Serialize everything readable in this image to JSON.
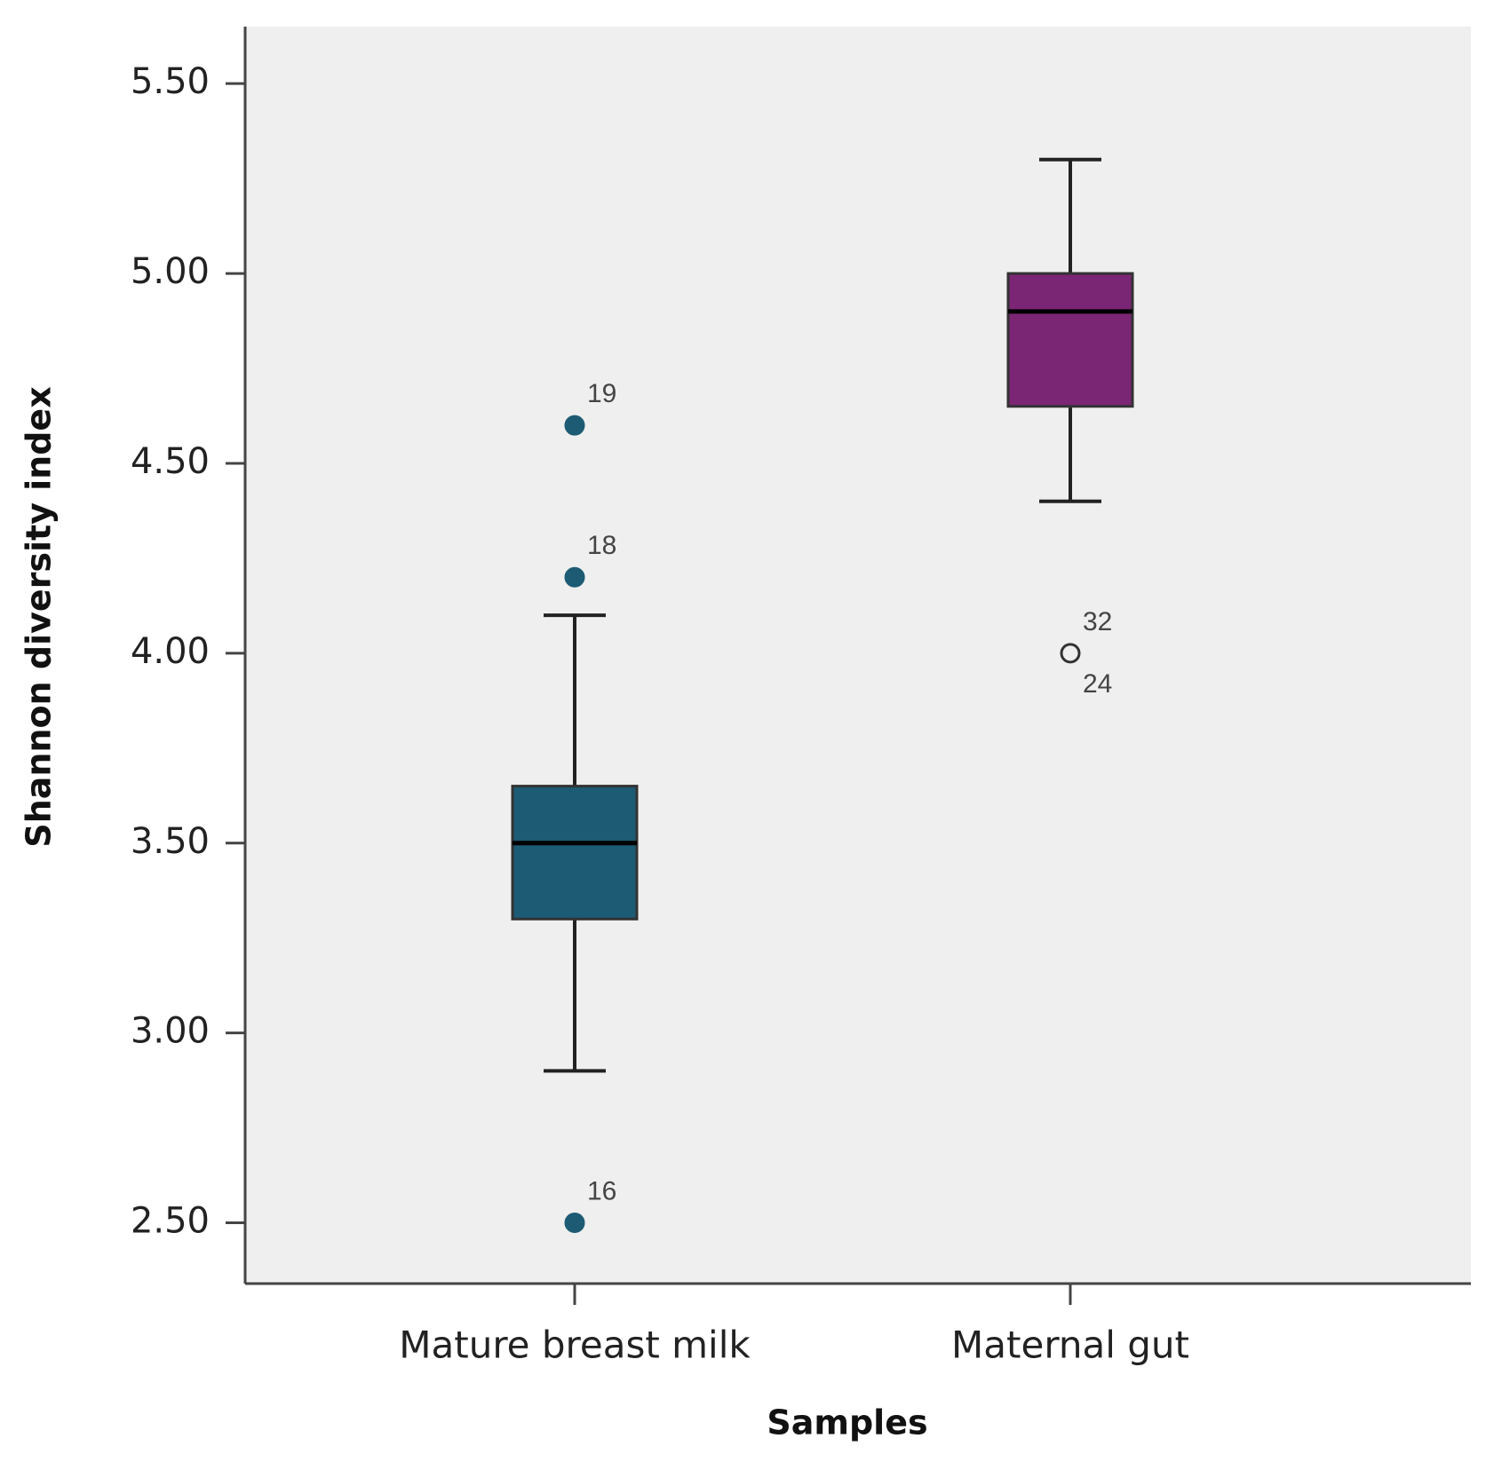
{
  "chart_data": {
    "type": "box",
    "x_label": "Samples",
    "y_label": "Shannon diversity index",
    "categories": [
      "Mature breast milk",
      "Maternal gut"
    ],
    "boxes": [
      {
        "min": 2.9,
        "q1": 3.3,
        "median": 3.5,
        "q3": 3.65,
        "max": 4.1,
        "color": "#1c5b73",
        "outliers": [
          {
            "value": 4.6,
            "label": "19",
            "marker": "filled"
          },
          {
            "value": 4.2,
            "label": "18",
            "marker": "filled"
          },
          {
            "value": 2.5,
            "label": "16",
            "marker": "filled"
          }
        ]
      },
      {
        "min": 4.4,
        "q1": 4.65,
        "median": 4.9,
        "q3": 5.0,
        "max": 5.3,
        "color": "#7b2575",
        "outliers": [
          {
            "value": 4.0,
            "label": "32",
            "marker": "open"
          },
          {
            "value": 4.0,
            "label": "24",
            "marker": "open"
          }
        ]
      }
    ],
    "ylim": [
      2.34,
      5.65
    ],
    "yticks": [
      {
        "value": 2.5,
        "label": "2.50"
      },
      {
        "value": 3.0,
        "label": "3.00"
      },
      {
        "value": 3.5,
        "label": "3.50"
      },
      {
        "value": 4.0,
        "label": "4.00"
      },
      {
        "value": 4.5,
        "label": "4.50"
      },
      {
        "value": 5.0,
        "label": "5.00"
      },
      {
        "value": 5.5,
        "label": "5.50"
      }
    ],
    "grid": false
  }
}
